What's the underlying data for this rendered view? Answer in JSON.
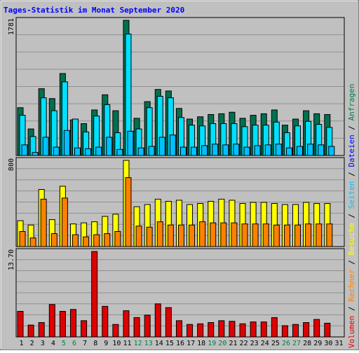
{
  "title": "Tages-Statistik im Monat September 2020",
  "colors": {
    "frame_bg": "#c0c0c0",
    "anfragen": "#007050",
    "dateien": "#00e0ff",
    "seiten": "#00c0ff",
    "besuche": "#ffff00",
    "rechner": "#ff8000",
    "volumen": "#e00000",
    "title": "#0000ff",
    "weekend_label": "#008040"
  },
  "legend": [
    {
      "text": "Volumen",
      "color": "#e00000",
      "sep": " / "
    },
    {
      "text": "Rechner",
      "color": "#ff8000",
      "sep": " / "
    },
    {
      "text": "Besuche",
      "color": "#ffff00",
      "sep": " / "
    },
    {
      "text": "Seiten",
      "color": "#00c0ff",
      "sep": " / "
    },
    {
      "text": "Dateien",
      "color": "#0000ff",
      "sep": " / "
    },
    {
      "text": "Anfragen",
      "color": "#008040",
      "sep": ""
    }
  ],
  "chart_data": {
    "type": "bar",
    "categories": [
      "1",
      "2",
      "3",
      "4",
      "5",
      "6",
      "7",
      "8",
      "9",
      "10",
      "11",
      "12",
      "13",
      "14",
      "15",
      "16",
      "17",
      "18",
      "19",
      "20",
      "21",
      "22",
      "23",
      "24",
      "25",
      "26",
      "27",
      "28",
      "29",
      "30",
      "31"
    ],
    "weekend_days": [
      5,
      6,
      12,
      13,
      19,
      20,
      26,
      27
    ],
    "panels": [
      {
        "name": "hits",
        "ymax": 1781,
        "ymax_label": "1781",
        "series": [
          {
            "name": "Anfragen",
            "color": "#007050",
            "values": [
              630,
              350,
              880,
              750,
              1080,
              470,
              420,
              600,
              800,
              590,
              1781,
              490,
              710,
              870,
              850,
              620,
              480,
              510,
              540,
              550,
              570,
              490,
              530,
              550,
              600,
              400,
              480,
              590,
              550,
              540,
              null
            ]
          },
          {
            "name": "Dateien",
            "color": "#00e0ff",
            "values": [
              530,
              250,
              760,
              590,
              970,
              480,
              310,
              520,
              670,
              300,
              1600,
              350,
              630,
              780,
              760,
              500,
              400,
              390,
              420,
              420,
              420,
              380,
              400,
              400,
              440,
              300,
              390,
              450,
              410,
              370,
              null
            ]
          },
          {
            "name": "Seiten",
            "color": "#00c0ff",
            "values": [
              140,
              40,
              240,
              110,
              330,
              100,
              90,
              110,
              240,
              80,
              320,
              100,
              120,
              240,
              270,
              110,
              110,
              130,
              150,
              140,
              150,
              110,
              130,
              140,
              150,
              100,
              120,
              150,
              140,
              120,
              null
            ]
          }
        ]
      },
      {
        "name": "visits",
        "ymax": 800,
        "ymax_label": "800",
        "series": [
          {
            "name": "Besuche",
            "color": "#ffff00",
            "values": [
              240,
              200,
              530,
              250,
              560,
              210,
              220,
              230,
              280,
              300,
              800,
              370,
              390,
              440,
              420,
              430,
              390,
              400,
              420,
              440,
              430,
              400,
              410,
              410,
              400,
              390,
              390,
              410,
              400,
              400,
              null
            ]
          },
          {
            "name": "Rechner",
            "color": "#ff8000",
            "values": [
              140,
              80,
              440,
              120,
              450,
              110,
              90,
              110,
              120,
              140,
              640,
              190,
              180,
              230,
              200,
              200,
              200,
              230,
              220,
              220,
              220,
              210,
              210,
              210,
              200,
              200,
              200,
              210,
              210,
              210,
              null
            ]
          }
        ]
      },
      {
        "name": "volume",
        "ymax": 13.7,
        "ymax_label": "13.70",
        "series": [
          {
            "name": "Volumen",
            "color": "#e00000",
            "values": [
              4.1,
              1.9,
              2.3,
              5.2,
              4.1,
              4.4,
              2.6,
              13.7,
              4.9,
              2.0,
              4.2,
              3.1,
              3.5,
              5.3,
              4.7,
              2.6,
              2.0,
              2.1,
              2.3,
              2.6,
              2.5,
              2.1,
              2.4,
              2.4,
              3.1,
              1.8,
              2.0,
              2.3,
              2.8,
              2.2,
              null
            ]
          }
        ]
      }
    ]
  }
}
